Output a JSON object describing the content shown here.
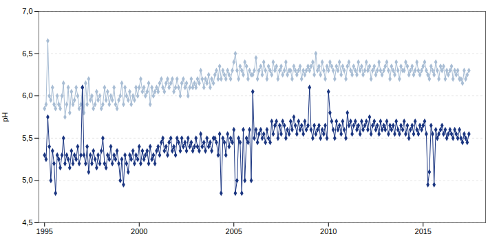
{
  "chart_data": {
    "type": "line",
    "ylabel": "pH",
    "xlim": [
      1994.7,
      2018.3
    ],
    "ylim": [
      4.5,
      7.0
    ],
    "xticks": [
      1995,
      2000,
      2005,
      2010,
      2015
    ],
    "yticks": [
      {
        "value": 4.5,
        "label": "4,5"
      },
      {
        "value": 5.0,
        "label": "5,0"
      },
      {
        "value": 5.5,
        "label": "5,5"
      },
      {
        "value": 6.0,
        "label": "6,0"
      },
      {
        "value": 6.5,
        "label": "6,5"
      },
      {
        "value": 7.0,
        "label": "7,0"
      }
    ],
    "grid": "y",
    "x": [
      1995.0,
      1995.08,
      1995.17,
      1995.25,
      1995.33,
      1995.42,
      1995.5,
      1995.58,
      1995.67,
      1995.75,
      1995.83,
      1995.92,
      1996.0,
      1996.08,
      1996.17,
      1996.25,
      1996.33,
      1996.42,
      1996.5,
      1996.58,
      1996.67,
      1996.75,
      1996.83,
      1996.92,
      1997.0,
      1997.08,
      1997.17,
      1997.25,
      1997.33,
      1997.42,
      1997.5,
      1997.58,
      1997.67,
      1997.75,
      1997.83,
      1997.92,
      1998.0,
      1998.08,
      1998.17,
      1998.25,
      1998.33,
      1998.42,
      1998.5,
      1998.58,
      1998.67,
      1998.75,
      1998.83,
      1998.92,
      1999.0,
      1999.08,
      1999.17,
      1999.25,
      1999.33,
      1999.42,
      1999.5,
      1999.58,
      1999.67,
      1999.75,
      1999.83,
      1999.92,
      2000.0,
      2000.08,
      2000.17,
      2000.25,
      2000.33,
      2000.42,
      2000.5,
      2000.58,
      2000.67,
      2000.75,
      2000.83,
      2000.92,
      2001.0,
      2001.08,
      2001.17,
      2001.25,
      2001.33,
      2001.42,
      2001.5,
      2001.58,
      2001.67,
      2001.75,
      2001.83,
      2001.92,
      2002.0,
      2002.08,
      2002.17,
      2002.25,
      2002.33,
      2002.42,
      2002.5,
      2002.58,
      2002.67,
      2002.75,
      2002.83,
      2002.92,
      2003.0,
      2003.08,
      2003.17,
      2003.25,
      2003.33,
      2003.42,
      2003.5,
      2003.58,
      2003.67,
      2003.75,
      2003.83,
      2003.92,
      2004.0,
      2004.08,
      2004.17,
      2004.25,
      2004.33,
      2004.42,
      2004.5,
      2004.58,
      2004.67,
      2004.75,
      2004.83,
      2004.92,
      2005.0,
      2005.08,
      2005.17,
      2005.25,
      2005.33,
      2005.42,
      2005.5,
      2005.58,
      2005.67,
      2005.75,
      2005.83,
      2005.92,
      2006.0,
      2006.08,
      2006.17,
      2006.25,
      2006.33,
      2006.42,
      2006.5,
      2006.58,
      2006.67,
      2006.75,
      2006.83,
      2006.92,
      2007.0,
      2007.08,
      2007.17,
      2007.25,
      2007.33,
      2007.42,
      2007.5,
      2007.58,
      2007.67,
      2007.75,
      2007.83,
      2007.92,
      2008.0,
      2008.08,
      2008.17,
      2008.25,
      2008.33,
      2008.42,
      2008.5,
      2008.58,
      2008.67,
      2008.75,
      2008.83,
      2008.92,
      2009.0,
      2009.08,
      2009.17,
      2009.25,
      2009.33,
      2009.42,
      2009.5,
      2009.58,
      2009.67,
      2009.75,
      2009.83,
      2009.92,
      2010.0,
      2010.08,
      2010.17,
      2010.25,
      2010.33,
      2010.42,
      2010.5,
      2010.58,
      2010.67,
      2010.75,
      2010.83,
      2010.92,
      2011.0,
      2011.08,
      2011.17,
      2011.25,
      2011.33,
      2011.42,
      2011.5,
      2011.58,
      2011.67,
      2011.75,
      2011.83,
      2011.92,
      2012.0,
      2012.08,
      2012.17,
      2012.25,
      2012.33,
      2012.42,
      2012.5,
      2012.58,
      2012.67,
      2012.75,
      2012.83,
      2012.92,
      2013.0,
      2013.08,
      2013.17,
      2013.25,
      2013.33,
      2013.42,
      2013.5,
      2013.58,
      2013.67,
      2013.75,
      2013.83,
      2013.92,
      2014.0,
      2014.08,
      2014.17,
      2014.25,
      2014.33,
      2014.42,
      2014.5,
      2014.58,
      2014.67,
      2014.75,
      2014.83,
      2014.92,
      2015.0,
      2015.08,
      2015.17,
      2015.25,
      2015.33,
      2015.42,
      2015.5,
      2015.58,
      2015.67,
      2015.75,
      2015.83,
      2015.92,
      2016.0,
      2016.08,
      2016.17,
      2016.25,
      2016.33,
      2016.42,
      2016.5,
      2016.58,
      2016.67,
      2016.75,
      2016.83,
      2016.92,
      2017.0,
      2017.08,
      2017.17,
      2017.25,
      2017.33,
      2017.42
    ],
    "series": [
      {
        "color": "#a8bdd4",
        "marker": "diamond",
        "values": [
          5.85,
          5.9,
          6.65,
          6.0,
          5.95,
          6.1,
          5.9,
          5.85,
          6.0,
          5.9,
          5.85,
          6.0,
          6.15,
          5.75,
          5.9,
          6.1,
          5.8,
          6.05,
          5.9,
          5.95,
          6.1,
          6.0,
          5.85,
          5.9,
          6.1,
          5.8,
          6.15,
          5.9,
          6.2,
          5.95,
          6.0,
          5.85,
          5.9,
          6.05,
          5.95,
          6.0,
          5.85,
          5.9,
          6.1,
          5.95,
          6.05,
          5.9,
          6.0,
          5.95,
          6.1,
          5.9,
          5.85,
          5.95,
          6.0,
          6.15,
          5.9,
          6.1,
          6.0,
          5.95,
          6.05,
          5.9,
          6.0,
          5.95,
          6.1,
          6.0,
          6.1,
          6.2,
          6.05,
          6.1,
          6.0,
          6.05,
          6.15,
          5.9,
          6.1,
          6.0,
          6.05,
          6.1,
          6.05,
          6.15,
          6.2,
          6.1,
          6.05,
          6.15,
          6.2,
          6.1,
          6.15,
          6.2,
          6.05,
          6.1,
          6.2,
          6.1,
          6.0,
          6.15,
          6.2,
          6.1,
          6.15,
          6.0,
          6.1,
          6.2,
          6.1,
          6.15,
          6.1,
          6.2,
          6.15,
          6.3,
          6.2,
          6.1,
          6.2,
          6.15,
          6.25,
          6.1,
          6.2,
          6.15,
          6.25,
          6.3,
          6.2,
          6.35,
          6.2,
          6.3,
          6.25,
          6.2,
          6.3,
          6.25,
          6.2,
          6.3,
          6.4,
          6.5,
          6.3,
          6.2,
          6.35,
          6.3,
          6.25,
          6.4,
          6.35,
          6.2,
          6.3,
          6.25,
          6.25,
          6.3,
          6.45,
          6.2,
          6.3,
          6.35,
          6.25,
          6.4,
          6.3,
          6.2,
          6.35,
          6.3,
          6.25,
          6.4,
          6.3,
          6.35,
          6.2,
          6.3,
          6.35,
          6.25,
          6.3,
          6.4,
          6.25,
          6.3,
          6.3,
          6.2,
          6.35,
          6.3,
          6.25,
          6.3,
          6.35,
          6.2,
          6.3,
          6.25,
          6.3,
          6.35,
          6.3,
          6.35,
          6.4,
          6.25,
          6.5,
          6.3,
          6.35,
          6.25,
          6.4,
          6.3,
          6.2,
          6.35,
          6.3,
          6.4,
          6.35,
          6.3,
          6.2,
          6.35,
          6.3,
          6.4,
          6.25,
          6.35,
          6.3,
          6.2,
          6.35,
          6.4,
          6.3,
          6.25,
          6.35,
          6.3,
          6.25,
          6.4,
          6.3,
          6.35,
          6.25,
          6.3,
          6.4,
          6.3,
          6.35,
          6.2,
          6.3,
          6.35,
          6.25,
          6.3,
          6.4,
          6.3,
          6.25,
          6.3,
          6.35,
          6.4,
          6.3,
          6.2,
          6.35,
          6.3,
          6.25,
          6.4,
          6.3,
          6.2,
          6.35,
          6.3,
          6.3,
          6.4,
          6.35,
          6.25,
          6.3,
          6.35,
          6.25,
          6.3,
          6.4,
          6.3,
          6.25,
          6.3,
          6.35,
          6.4,
          6.3,
          6.25,
          6.2,
          6.35,
          6.3,
          6.25,
          6.4,
          6.3,
          6.2,
          6.35,
          6.3,
          6.35,
          6.2,
          6.3,
          6.25,
          6.3,
          6.35,
          6.2,
          6.3,
          6.25,
          6.3,
          6.2,
          6.2,
          6.15,
          6.3,
          6.2,
          6.25,
          6.3
        ]
      },
      {
        "color": "#1a3580",
        "marker": "diamond",
        "values": [
          5.3,
          5.25,
          5.75,
          5.4,
          5.0,
          5.35,
          5.2,
          4.85,
          5.3,
          5.25,
          5.15,
          5.3,
          5.5,
          5.2,
          5.3,
          5.25,
          5.15,
          5.35,
          5.2,
          5.3,
          5.25,
          5.4,
          5.2,
          5.3,
          6.1,
          5.3,
          5.2,
          5.4,
          5.1,
          5.3,
          5.2,
          5.35,
          5.25,
          5.15,
          5.3,
          5.2,
          5.35,
          5.5,
          5.2,
          5.15,
          5.3,
          5.25,
          5.4,
          5.2,
          5.3,
          5.25,
          5.35,
          5.2,
          5.0,
          5.25,
          4.95,
          5.3,
          5.2,
          5.1,
          5.3,
          5.25,
          5.35,
          5.2,
          5.3,
          5.25,
          5.4,
          5.2,
          5.35,
          5.25,
          5.3,
          5.35,
          5.2,
          5.4,
          5.25,
          5.3,
          5.2,
          5.35,
          5.4,
          5.3,
          5.45,
          5.5,
          5.35,
          5.4,
          5.3,
          5.45,
          5.5,
          5.35,
          5.4,
          5.3,
          5.5,
          5.45,
          5.35,
          5.5,
          5.4,
          5.45,
          5.35,
          5.5,
          5.4,
          5.45,
          5.35,
          5.4,
          5.5,
          5.4,
          5.35,
          5.55,
          5.4,
          5.45,
          5.35,
          5.5,
          5.4,
          5.45,
          5.35,
          5.5,
          5.5,
          5.45,
          5.3,
          5.55,
          4.85,
          5.5,
          5.45,
          5.3,
          5.55,
          5.4,
          5.5,
          5.45,
          5.6,
          4.85,
          5.0,
          5.5,
          5.45,
          4.85,
          5.6,
          5.0,
          5.5,
          5.45,
          5.6,
          5.0,
          6.05,
          5.5,
          5.6,
          5.45,
          5.55,
          5.6,
          5.5,
          5.55,
          5.45,
          5.6,
          5.5,
          5.45,
          5.7,
          5.55,
          5.65,
          5.7,
          5.5,
          5.65,
          5.55,
          5.7,
          5.65,
          5.5,
          5.6,
          5.55,
          5.7,
          5.6,
          5.75,
          5.65,
          5.55,
          5.7,
          5.6,
          5.65,
          5.55,
          5.7,
          5.6,
          5.65,
          6.1,
          5.6,
          5.5,
          5.65,
          5.55,
          5.6,
          5.65,
          5.5,
          5.6,
          5.55,
          5.65,
          5.5,
          6.05,
          5.8,
          5.7,
          5.6,
          5.5,
          5.7,
          5.6,
          5.65,
          5.55,
          5.7,
          5.6,
          5.5,
          5.8,
          5.65,
          5.7,
          5.55,
          5.65,
          5.7,
          5.6,
          5.65,
          5.55,
          5.7,
          5.6,
          5.65,
          5.7,
          5.6,
          5.75,
          5.55,
          5.65,
          5.7,
          5.6,
          5.65,
          5.55,
          5.7,
          5.6,
          5.65,
          5.6,
          5.7,
          5.55,
          5.65,
          5.6,
          5.65,
          5.55,
          5.7,
          5.6,
          5.55,
          5.65,
          5.6,
          5.7,
          5.55,
          5.65,
          5.5,
          5.6,
          5.65,
          5.55,
          5.7,
          5.6,
          5.55,
          5.65,
          5.6,
          5.65,
          5.7,
          5.55,
          4.95,
          5.1,
          5.65,
          5.55,
          4.95,
          5.6,
          5.5,
          5.55,
          5.6,
          5.65,
          5.55,
          5.6,
          5.5,
          5.55,
          5.6,
          5.55,
          5.5,
          5.6,
          5.55,
          5.5,
          5.6,
          5.5,
          5.45,
          5.55,
          5.5,
          5.45,
          5.55
        ]
      }
    ]
  }
}
